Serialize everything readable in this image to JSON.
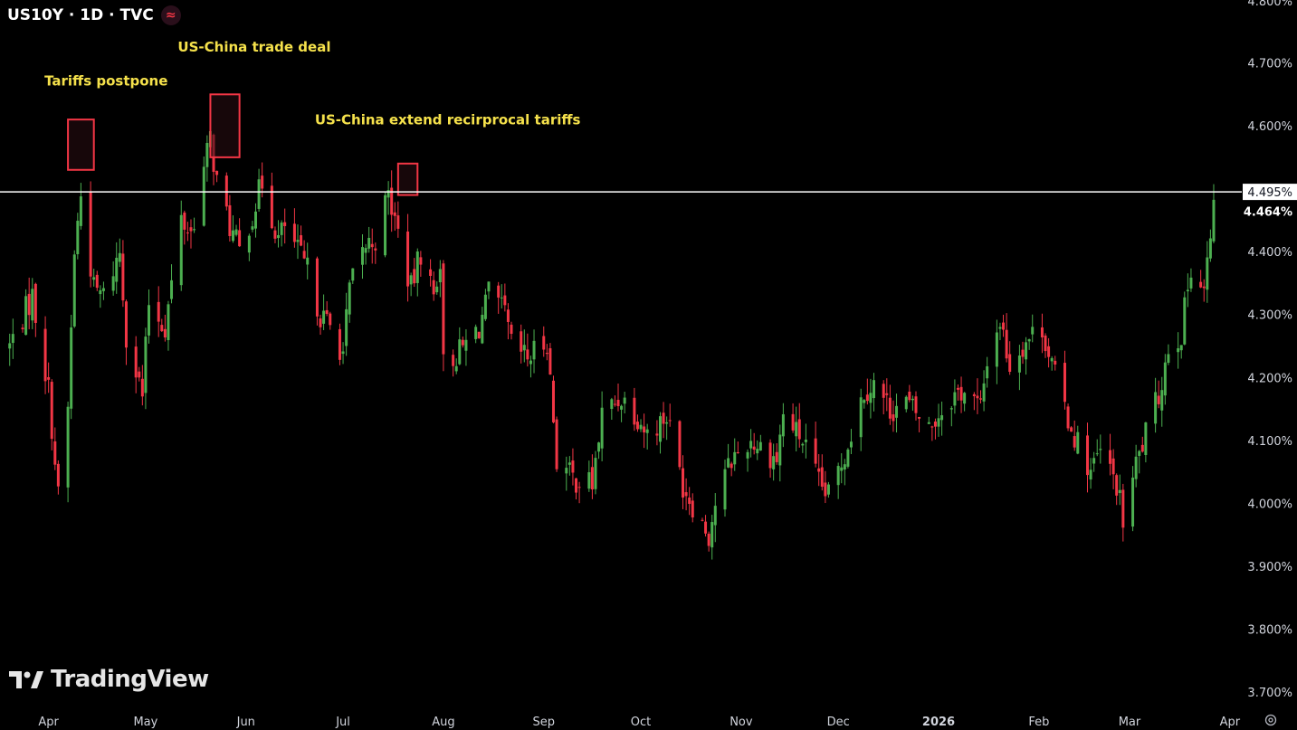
{
  "header": {
    "title": "US10Y · 1D · TVC",
    "live_icon": "≈",
    "accent": "#f23645"
  },
  "brand": {
    "name": "TradingView"
  },
  "colors": {
    "background": "#000000",
    "up": "#4caf50",
    "down": "#f23645",
    "annotation_text": "#f5e14b",
    "box_border": "#f23645",
    "box_fill": "#2a0d12",
    "horizontal_line": "#ffffff",
    "axis_text": "#d1d4dc"
  },
  "chart_data": {
    "type": "candlestick",
    "y_unit": "%",
    "ylim": [
      3.7,
      4.8
    ],
    "y_ticks": [
      "3.700%",
      "3.800%",
      "3.900%",
      "4.000%",
      "4.100%",
      "4.200%",
      "4.300%",
      "4.400%",
      "4.464%",
      "4.495%",
      "4.600%",
      "4.700%",
      "4.800%"
    ],
    "x_ticks": [
      "Apr",
      "May",
      "Jun",
      "Jul",
      "Aug",
      "Sep",
      "Oct",
      "Nov",
      "Dec",
      "2026",
      "Feb",
      "Mar",
      "Apr"
    ],
    "current_price_label": "4.464%",
    "horizontal_line": {
      "value": 4.495,
      "label": "4.495%"
    },
    "annotations": [
      {
        "text": "Tariffs postpone",
        "date": "2025-04-09"
      },
      {
        "text": "US-China trade deal",
        "date": "2025-05-12"
      },
      {
        "text": "US-China  extend recirprocal tariffs",
        "date": "2025-07-17"
      }
    ],
    "highlight_boxes": [
      {
        "from": "2025-04-07",
        "to": "2025-04-15",
        "low": 4.53,
        "high": 4.61
      },
      {
        "from": "2025-05-21",
        "to": "2025-05-30",
        "low": 4.55,
        "high": 4.65
      },
      {
        "from": "2025-07-18",
        "to": "2025-07-24",
        "low": 4.49,
        "high": 4.54
      }
    ],
    "path": [
      [
        "2025-03-20",
        4.25
      ],
      [
        "2025-03-27",
        4.33
      ],
      [
        "2025-04-01",
        4.18
      ],
      [
        "2025-04-04",
        4.01
      ],
      [
        "2025-04-07",
        4.15
      ],
      [
        "2025-04-09",
        4.4
      ],
      [
        "2025-04-11",
        4.49
      ],
      [
        "2025-04-15",
        4.34
      ],
      [
        "2025-04-18",
        4.33
      ],
      [
        "2025-04-23",
        4.4
      ],
      [
        "2025-04-25",
        4.27
      ],
      [
        "2025-04-30",
        4.17
      ],
      [
        "2025-05-02",
        4.32
      ],
      [
        "2025-05-07",
        4.28
      ],
      [
        "2025-05-12",
        4.45
      ],
      [
        "2025-05-15",
        4.43
      ],
      [
        "2025-05-21",
        4.58
      ],
      [
        "2025-05-23",
        4.51
      ],
      [
        "2025-05-27",
        4.44
      ],
      [
        "2025-05-30",
        4.4
      ],
      [
        "2025-06-03",
        4.46
      ],
      [
        "2025-06-06",
        4.51
      ],
      [
        "2025-06-11",
        4.42
      ],
      [
        "2025-06-13",
        4.44
      ],
      [
        "2025-06-18",
        4.39
      ],
      [
        "2025-06-20",
        4.37
      ],
      [
        "2025-06-24",
        4.3
      ],
      [
        "2025-06-27",
        4.28
      ],
      [
        "2025-07-01",
        4.24
      ],
      [
        "2025-07-03",
        4.34
      ],
      [
        "2025-07-08",
        4.41
      ],
      [
        "2025-07-11",
        4.42
      ],
      [
        "2025-07-15",
        4.49
      ],
      [
        "2025-07-18",
        4.43
      ],
      [
        "2025-07-22",
        4.34
      ],
      [
        "2025-07-25",
        4.4
      ],
      [
        "2025-07-29",
        4.33
      ],
      [
        "2025-07-31",
        4.39
      ],
      [
        "2025-08-01",
        4.22
      ],
      [
        "2025-08-06",
        4.24
      ],
      [
        "2025-08-12",
        4.28
      ],
      [
        "2025-08-15",
        4.33
      ],
      [
        "2025-08-20",
        4.3
      ],
      [
        "2025-08-22",
        4.25
      ],
      [
        "2025-08-27",
        4.23
      ],
      [
        "2025-09-02",
        4.26
      ],
      [
        "2025-09-05",
        4.07
      ],
      [
        "2025-09-10",
        4.04
      ],
      [
        "2025-09-16",
        4.03
      ],
      [
        "2025-09-19",
        4.14
      ],
      [
        "2025-09-25",
        4.17
      ],
      [
        "2025-09-30",
        4.14
      ],
      [
        "2025-10-03",
        4.11
      ],
      [
        "2025-10-09",
        4.14
      ],
      [
        "2025-10-14",
        4.03
      ],
      [
        "2025-10-17",
        4.0
      ],
      [
        "2025-10-22",
        3.95
      ],
      [
        "2025-10-24",
        4.0
      ],
      [
        "2025-10-29",
        4.07
      ],
      [
        "2025-11-04",
        4.1
      ],
      [
        "2025-11-07",
        4.09
      ],
      [
        "2025-11-12",
        4.07
      ],
      [
        "2025-11-14",
        4.14
      ],
      [
        "2025-11-20",
        4.1
      ],
      [
        "2025-11-25",
        4.03
      ],
      [
        "2025-11-28",
        4.01
      ],
      [
        "2025-12-03",
        4.08
      ],
      [
        "2025-12-09",
        4.18
      ],
      [
        "2025-12-12",
        4.19
      ],
      [
        "2025-12-17",
        4.15
      ],
      [
        "2025-12-22",
        4.16
      ],
      [
        "2025-12-29",
        4.12
      ],
      [
        "2026-01-05",
        4.17
      ],
      [
        "2026-01-09",
        4.18
      ],
      [
        "2026-01-14",
        4.15
      ],
      [
        "2026-01-16",
        4.23
      ],
      [
        "2026-01-20",
        4.29
      ],
      [
        "2026-01-23",
        4.22
      ],
      [
        "2026-01-28",
        4.26
      ],
      [
        "2026-02-02",
        4.28
      ],
      [
        "2026-02-06",
        4.2
      ],
      [
        "2026-02-11",
        4.12
      ],
      [
        "2026-02-17",
        4.05
      ],
      [
        "2026-02-20",
        4.08
      ],
      [
        "2026-02-25",
        4.03
      ],
      [
        "2026-02-27",
        3.97
      ],
      [
        "2026-03-03",
        4.06
      ],
      [
        "2026-03-06",
        4.11
      ],
      [
        "2026-03-10",
        4.17
      ],
      [
        "2026-03-13",
        4.25
      ],
      [
        "2026-03-17",
        4.27
      ],
      [
        "2026-03-20",
        4.38
      ],
      [
        "2026-03-24",
        4.34
      ],
      [
        "2026-03-27",
        4.46
      ]
    ]
  }
}
